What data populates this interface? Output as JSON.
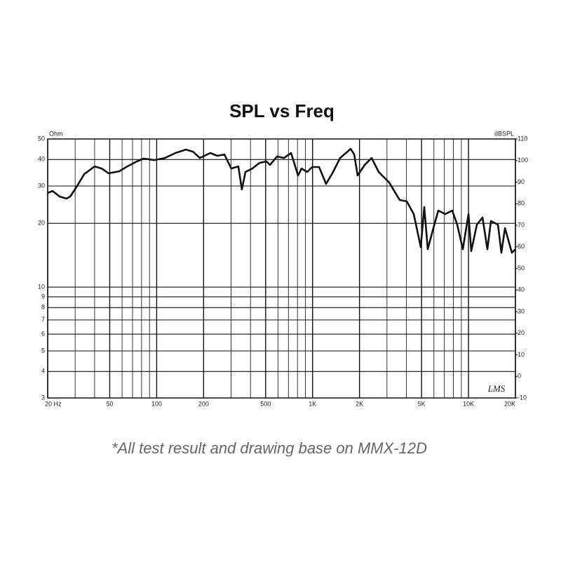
{
  "chart_data": {
    "type": "line",
    "title": "SPL vs Freq",
    "y_label": "Ohm",
    "y2_label": "dBSPL",
    "logo": "LMS",
    "footnote": "*All test result and drawing base on MMX-12D",
    "xscale": "log",
    "yscale": "log",
    "xlim": [
      20,
      20000
    ],
    "xticks": [
      {
        "value": 20,
        "label": "20 Hz"
      },
      50,
      100,
      200,
      500,
      {
        "value": 1000,
        "label": "1K"
      },
      {
        "value": 2000,
        "label": "2K"
      },
      {
        "value": 5000,
        "label": "5K"
      },
      {
        "value": 10000,
        "label": "10K"
      },
      {
        "value": 20000,
        "label": "20K"
      }
    ],
    "xminor": [
      30,
      40,
      60,
      70,
      80,
      90,
      300,
      400,
      600,
      700,
      800,
      900,
      3000,
      4000,
      6000,
      7000,
      8000,
      9000
    ],
    "ylim": [
      3,
      50
    ],
    "yticks": [
      3,
      4,
      5,
      6,
      7,
      8,
      9,
      10,
      20,
      30,
      40,
      50
    ],
    "y2lim": [
      -10,
      110
    ],
    "y2ticks": [
      -10,
      0,
      10,
      20,
      30,
      40,
      50,
      60,
      70,
      80,
      90,
      100,
      110
    ],
    "grid": true,
    "x": [
      20,
      21.5,
      23.9,
      26.4,
      27.9,
      30.9,
      34.3,
      40,
      44.4,
      49.2,
      57.5,
      63.8,
      74.5,
      82.6,
      96.5,
      113,
      132,
      154,
      171,
      189,
      221,
      245,
      272,
      301,
      334,
      352,
      371,
      411,
      456,
      506,
      533,
      592,
      656,
      728,
      807,
      850,
      923,
      993,
      1101,
      1221,
      1354,
      1502,
      1755,
      1849,
      1946,
      2159,
      2394,
      2655,
      3100,
      3622,
      4017,
      4454,
      4940,
      5205,
      5482,
      5956,
      6400,
      7100,
      7870,
      8470,
      9200,
      10000,
      10420,
      11320,
      12300,
      13220,
      13930,
      15450,
      16260,
      17140,
      19000,
      20000
    ],
    "series": [
      {
        "name": "SPL",
        "color": "#111111",
        "axis": "y2",
        "values": [
          85,
          85.9,
          83.3,
          82.4,
          83.3,
          88.2,
          93.7,
          97.3,
          96.3,
          94.1,
          95,
          97,
          99.6,
          100.9,
          100.2,
          101.2,
          103.5,
          105.1,
          104.1,
          101.2,
          103.5,
          102.2,
          102.8,
          96.3,
          97.3,
          86.6,
          94.7,
          96.3,
          98.9,
          99.6,
          98,
          101.9,
          101.2,
          103.5,
          93.1,
          96.3,
          94.7,
          97,
          97,
          89.2,
          94.7,
          101.2,
          105.4,
          102.8,
          93.1,
          98,
          101.2,
          94.7,
          89.8,
          81.7,
          81.1,
          75.2,
          59.9,
          78.5,
          58.9,
          68.7,
          76.8,
          75.2,
          76.8,
          70.3,
          58.9,
          75.2,
          58,
          70.3,
          73.6,
          58.9,
          72,
          70.3,
          57.3,
          68.7,
          57.3,
          58.9
        ]
      }
    ]
  }
}
